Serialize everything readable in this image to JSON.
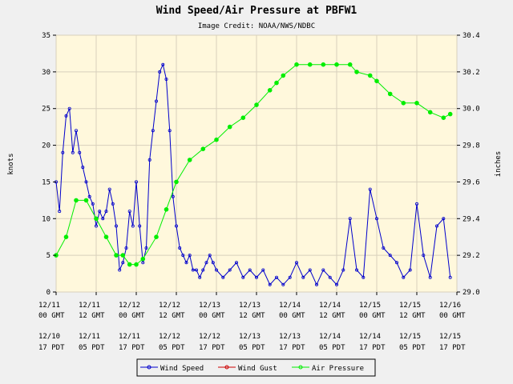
{
  "chart_data": {
    "type": "line",
    "title": "Wind Speed/Air Pressure at PBFW1",
    "subtitle": "Image Credit: NOAA/NWS/NDBC",
    "ylabel_left": "knots",
    "ylabel_right": "inches",
    "ylim_left": [
      0,
      35
    ],
    "ylim_right": [
      29.0,
      30.4
    ],
    "yticks_left": [
      "0",
      "5",
      "10",
      "15",
      "20",
      "25",
      "30",
      "35"
    ],
    "yticks_right": [
      "29.0",
      "29.2",
      "29.4",
      "29.6",
      "29.8",
      "30.0",
      "30.2",
      "30.4"
    ],
    "xticks_gmt": [
      [
        "12/11",
        "00 GMT"
      ],
      [
        "12/11",
        "12 GMT"
      ],
      [
        "12/12",
        "00 GMT"
      ],
      [
        "12/12",
        "12 GMT"
      ],
      [
        "12/13",
        "00 GMT"
      ],
      [
        "12/13",
        "12 GMT"
      ],
      [
        "12/14",
        "00 GMT"
      ],
      [
        "12/14",
        "12 GMT"
      ],
      [
        "12/15",
        "00 GMT"
      ],
      [
        "12/15",
        "12 GMT"
      ],
      [
        "12/16",
        "00 GMT"
      ]
    ],
    "xticks_pdt": [
      [
        "12/10",
        "17 PDT"
      ],
      [
        "12/11",
        "05 PDT"
      ],
      [
        "12/11",
        "17 PDT"
      ],
      [
        "12/12",
        "05 PDT"
      ],
      [
        "12/12",
        "17 PDT"
      ],
      [
        "12/13",
        "05 PDT"
      ],
      [
        "12/13",
        "17 PDT"
      ],
      [
        "12/14",
        "05 PDT"
      ],
      [
        "12/14",
        "17 PDT"
      ],
      [
        "12/15",
        "05 PDT"
      ],
      [
        "12/15",
        "17 PDT"
      ]
    ],
    "x_unit": "hours since 12/11 00 GMT",
    "x_range": [
      0,
      120
    ],
    "grid": true,
    "legend_position": "bottom-center",
    "series": [
      {
        "name": "Wind Speed",
        "color": "#0000cc",
        "axis": "left",
        "x": [
          0,
          1,
          2,
          3,
          4,
          5,
          6,
          7,
          8,
          9,
          10,
          11,
          12,
          13,
          14,
          15,
          16,
          17,
          18,
          19,
          20,
          21,
          22,
          23,
          24,
          25,
          26,
          27,
          28,
          29,
          30,
          31,
          32,
          33,
          34,
          35,
          36,
          37,
          38,
          39,
          40,
          41,
          42,
          43,
          44,
          45,
          46,
          47,
          48,
          50,
          52,
          54,
          56,
          58,
          60,
          62,
          64,
          66,
          68,
          70,
          72,
          74,
          76,
          78,
          80,
          82,
          84,
          86,
          88,
          90,
          92,
          94,
          96,
          98,
          100,
          102,
          104,
          106,
          108,
          110,
          112,
          114,
          116,
          118
        ],
        "y": [
          15,
          11,
          19,
          24,
          25,
          19,
          22,
          19,
          17,
          15,
          13,
          12,
          9,
          11,
          10,
          11,
          14,
          12,
          9,
          3,
          4,
          6,
          11,
          9,
          15,
          9,
          4,
          6,
          18,
          22,
          26,
          30,
          31,
          29,
          22,
          13,
          9,
          6,
          5,
          4,
          5,
          3,
          3,
          2,
          3,
          4,
          5,
          4,
          3,
          2,
          3,
          4,
          2,
          3,
          2,
          3,
          1,
          2,
          1,
          2,
          4,
          2,
          3,
          1,
          3,
          2,
          1,
          3,
          10,
          3,
          2,
          14,
          10,
          6,
          5,
          4,
          2,
          3,
          12,
          5,
          2,
          9,
          10,
          2
        ]
      },
      {
        "name": "Wind Gust",
        "color": "#cc0000",
        "axis": "left",
        "x": [],
        "y": []
      },
      {
        "name": "Air Pressure",
        "color": "#00ee00",
        "axis": "right",
        "x": [
          0,
          3,
          6,
          9,
          12,
          15,
          18,
          20,
          22,
          24,
          26,
          30,
          33,
          36,
          40,
          44,
          48,
          52,
          56,
          60,
          64,
          66,
          68,
          72,
          76,
          80,
          84,
          88,
          90,
          94,
          96,
          100,
          104,
          108,
          112,
          116,
          118
        ],
        "y": [
          29.2,
          29.3,
          29.5,
          29.5,
          29.4,
          29.3,
          29.2,
          29.2,
          29.15,
          29.15,
          29.18,
          29.3,
          29.45,
          29.6,
          29.72,
          29.78,
          29.83,
          29.9,
          29.95,
          30.02,
          30.1,
          30.14,
          30.18,
          30.24,
          30.24,
          30.24,
          30.24,
          30.24,
          30.2,
          30.18,
          30.15,
          30.08,
          30.03,
          30.03,
          29.98,
          29.95,
          29.97
        ]
      }
    ]
  }
}
